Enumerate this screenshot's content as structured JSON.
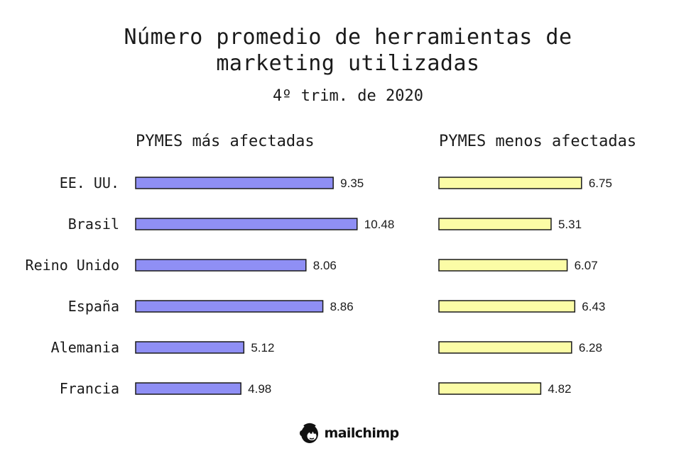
{
  "title": {
    "line1": "Número promedio de herramientas de",
    "line2": "marketing utilizadas"
  },
  "subtitle": "4º trim. de 2020",
  "chart_data": {
    "type": "bar",
    "orientation": "horizontal",
    "categories": [
      "EE. UU.",
      "Brasil",
      "Reino Unido",
      "España",
      "Alemania",
      "Francia"
    ],
    "series": [
      {
        "name": "PYMES más afectadas",
        "values": [
          9.35,
          10.48,
          8.06,
          8.86,
          5.12,
          4.98
        ],
        "color": "#8f8ff5"
      },
      {
        "name": "PYMES menos afectadas",
        "values": [
          6.75,
          5.31,
          6.07,
          6.43,
          6.28,
          4.82
        ],
        "color": "#fbfca6"
      }
    ],
    "value_labels": {
      "0": [
        "9.35",
        "10.48",
        "8.06",
        "8.86",
        "5.12",
        "4.98"
      ],
      "1": [
        "6.75",
        "5.31",
        "6.07",
        "6.43",
        "6.28",
        "4.82"
      ]
    },
    "grid": false,
    "legend": "none",
    "bar_outline": "#1a1a1a"
  },
  "logo": {
    "text": "mailchimp",
    "icon": "freddie-chimp-icon"
  }
}
